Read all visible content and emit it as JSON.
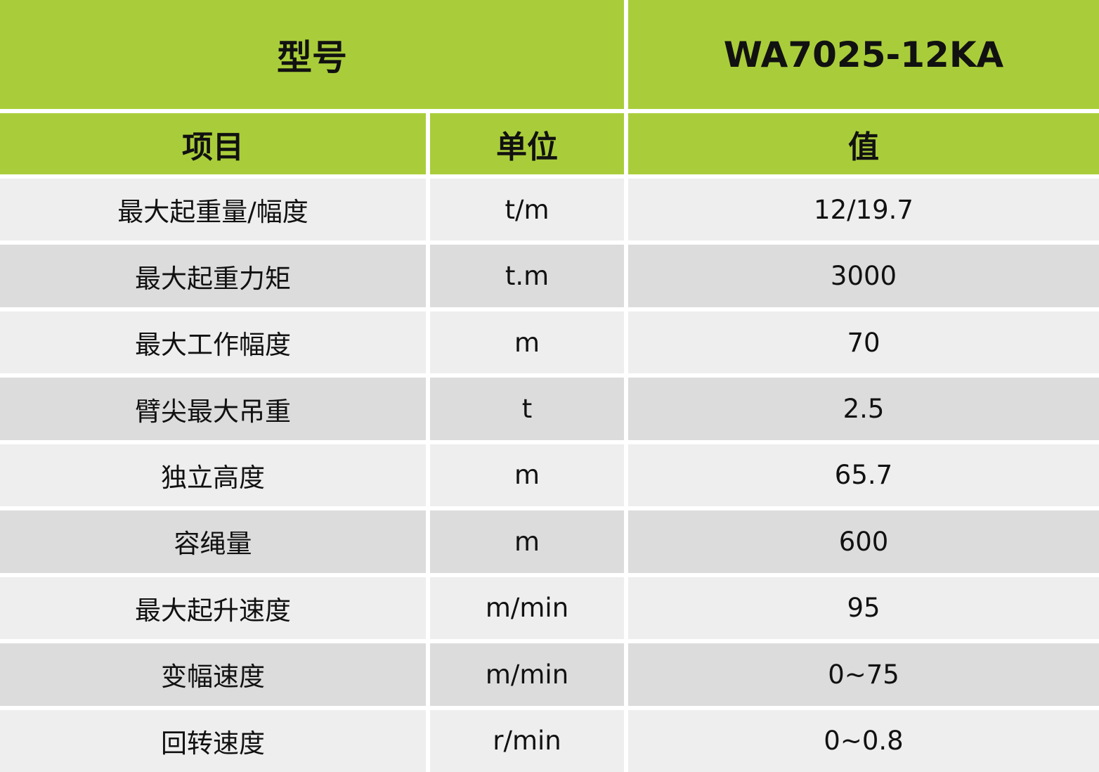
{
  "header": {
    "model_label": "型号",
    "model_value": "WA7025-12KA"
  },
  "columns": {
    "item": "项目",
    "unit": "单位",
    "value": "值"
  },
  "rows": [
    {
      "item": "最大起重量/幅度",
      "unit": "t/m",
      "value": "12/19.7"
    },
    {
      "item": "最大起重力矩",
      "unit": "t.m",
      "value": "3000"
    },
    {
      "item": "最大工作幅度",
      "unit": "m",
      "value": "70"
    },
    {
      "item": "臂尖最大吊重",
      "unit": "t",
      "value": "2.5"
    },
    {
      "item": "独立高度",
      "unit": "m",
      "value": "65.7"
    },
    {
      "item": "容绳量",
      "unit": "m",
      "value": "600"
    },
    {
      "item": "最大起升速度",
      "unit": "m/min",
      "value": "95"
    },
    {
      "item": "变幅速度",
      "unit": "m/min",
      "value": "0~75"
    },
    {
      "item": "回转速度",
      "unit": "r/min",
      "value": "0~0.8"
    }
  ],
  "colors": {
    "header_green": "#a9cd3a",
    "row_light": "#eeeeee",
    "row_dark": "#dcdcdc"
  }
}
